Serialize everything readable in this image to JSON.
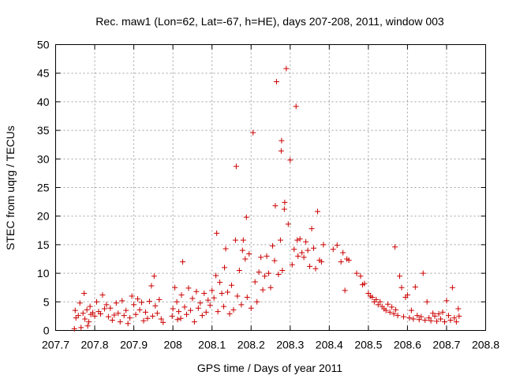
{
  "chart_data": {
    "type": "scatter",
    "title": "Rec. maw1 (Lon=62, Lat=-67, h=HE), days 207-208, 2011, window 003",
    "xlabel": "GPS time / Days of year 2011",
    "ylabel": "STEC from uqrg / TECUs",
    "xlim": [
      207.7,
      208.8
    ],
    "ylim": [
      0,
      50
    ],
    "xticks": [
      207.7,
      207.8,
      207.9,
      208.0,
      208.1,
      208.2,
      208.3,
      208.4,
      208.5,
      208.6,
      208.7,
      208.8
    ],
    "xtick_labels": [
      "207.7",
      "207.8",
      "207.9",
      "208",
      "208.1",
      "208.2",
      "208.3",
      "208.4",
      "208.5",
      "208.6",
      "208.7",
      "208.8"
    ],
    "yticks": [
      0,
      5,
      10,
      15,
      20,
      25,
      30,
      35,
      40,
      45,
      50
    ],
    "ytick_labels": [
      "0",
      "5",
      "10",
      "15",
      "20",
      "25",
      "30",
      "35",
      "40",
      "45",
      "50"
    ],
    "grid": true,
    "marker": "+",
    "color": "#cc0000",
    "series": [
      {
        "name": "STEC",
        "points": [
          [
            207.748,
            0.3
          ],
          [
            207.75,
            3.5
          ],
          [
            207.752,
            2.2
          ],
          [
            207.758,
            2.6
          ],
          [
            207.762,
            4.8
          ],
          [
            207.765,
            0.5
          ],
          [
            207.77,
            3.0
          ],
          [
            207.773,
            6.5
          ],
          [
            207.775,
            2.0
          ],
          [
            207.78,
            3.6
          ],
          [
            207.782,
            0.8
          ],
          [
            207.785,
            1.5
          ],
          [
            207.788,
            4.2
          ],
          [
            207.79,
            2.8
          ],
          [
            207.795,
            3.1
          ],
          [
            207.8,
            2.5
          ],
          [
            207.805,
            5.0
          ],
          [
            207.81,
            3.3
          ],
          [
            207.815,
            2.9
          ],
          [
            207.82,
            6.2
          ],
          [
            207.825,
            3.8
          ],
          [
            207.83,
            4.5
          ],
          [
            207.835,
            2.4
          ],
          [
            207.84,
            3.9
          ],
          [
            207.845,
            1.8
          ],
          [
            207.85,
            2.7
          ],
          [
            207.855,
            4.8
          ],
          [
            207.86,
            3.0
          ],
          [
            207.865,
            1.5
          ],
          [
            207.87,
            5.2
          ],
          [
            207.875,
            2.6
          ],
          [
            207.88,
            3.5
          ],
          [
            207.885,
            1.2
          ],
          [
            207.89,
            2.2
          ],
          [
            207.895,
            6.0
          ],
          [
            207.9,
            4.5
          ],
          [
            207.905,
            2.8
          ],
          [
            207.91,
            5.5
          ],
          [
            207.915,
            3.6
          ],
          [
            207.92,
            4.9
          ],
          [
            207.925,
            1.7
          ],
          [
            207.93,
            3.2
          ],
          [
            207.935,
            2.1
          ],
          [
            207.94,
            5.1
          ],
          [
            207.945,
            7.8
          ],
          [
            207.948,
            2.5
          ],
          [
            207.952,
            9.5
          ],
          [
            207.955,
            4.3
          ],
          [
            207.96,
            3.0
          ],
          [
            207.965,
            5.4
          ],
          [
            207.97,
            2.0
          ],
          [
            207.975,
            1.4
          ],
          [
            207.998,
            2.5
          ],
          [
            208.0,
            3.8
          ],
          [
            208.005,
            7.5
          ],
          [
            208.01,
            5.0
          ],
          [
            208.012,
            1.9
          ],
          [
            208.015,
            3.3
          ],
          [
            208.02,
            2.1
          ],
          [
            208.022,
            6.2
          ],
          [
            208.025,
            12.0
          ],
          [
            208.03,
            4.1
          ],
          [
            208.035,
            2.8
          ],
          [
            208.04,
            7.4
          ],
          [
            208.045,
            3.5
          ],
          [
            208.05,
            5.6
          ],
          [
            208.055,
            1.5
          ],
          [
            208.06,
            6.8
          ],
          [
            208.065,
            3.9
          ],
          [
            208.07,
            4.8
          ],
          [
            208.075,
            2.6
          ],
          [
            208.08,
            6.5
          ],
          [
            208.085,
            3.2
          ],
          [
            208.09,
            5.3
          ],
          [
            208.095,
            4.4
          ],
          [
            208.1,
            7.0
          ],
          [
            208.105,
            5.7
          ],
          [
            208.11,
            9.6
          ],
          [
            208.112,
            17.0
          ],
          [
            208.115,
            3.3
          ],
          [
            208.12,
            8.4
          ],
          [
            208.125,
            6.5
          ],
          [
            208.13,
            4.2
          ],
          [
            208.132,
            11.0
          ],
          [
            208.135,
            14.3
          ],
          [
            208.14,
            6.7
          ],
          [
            208.145,
            2.9
          ],
          [
            208.15,
            7.9
          ],
          [
            208.155,
            3.6
          ],
          [
            208.16,
            15.8
          ],
          [
            208.162,
            28.7
          ],
          [
            208.165,
            6.0
          ],
          [
            208.17,
            10.5
          ],
          [
            208.175,
            4.5
          ],
          [
            208.178,
            14.0
          ],
          [
            208.18,
            15.8
          ],
          [
            208.185,
            12.5
          ],
          [
            208.188,
            19.8
          ],
          [
            208.19,
            5.8
          ],
          [
            208.195,
            13.4
          ],
          [
            208.2,
            3.9
          ],
          [
            208.205,
            34.6
          ],
          [
            208.21,
            8.5
          ],
          [
            208.215,
            5.0
          ],
          [
            208.22,
            10.2
          ],
          [
            208.225,
            12.8
          ],
          [
            208.23,
            7.1
          ],
          [
            208.235,
            9.5
          ],
          [
            208.24,
            13.0
          ],
          [
            208.245,
            10.0
          ],
          [
            208.25,
            7.5
          ],
          [
            208.255,
            14.8
          ],
          [
            208.26,
            12.2
          ],
          [
            208.262,
            21.8
          ],
          [
            208.265,
            43.5
          ],
          [
            208.27,
            9.8
          ],
          [
            208.275,
            15.8
          ],
          [
            208.277,
            31.4
          ],
          [
            208.278,
            33.2
          ],
          [
            208.28,
            10.5
          ],
          [
            208.285,
            21.2
          ],
          [
            208.286,
            22.4
          ],
          [
            208.29,
            45.8
          ],
          [
            208.295,
            18.6
          ],
          [
            208.3,
            29.8
          ],
          [
            208.305,
            11.5
          ],
          [
            208.31,
            14.2
          ],
          [
            208.315,
            39.2
          ],
          [
            208.318,
            15.8
          ],
          [
            208.32,
            13.0
          ],
          [
            208.325,
            16.0
          ],
          [
            208.33,
            13.6
          ],
          [
            208.335,
            12.8
          ],
          [
            208.34,
            15.5
          ],
          [
            208.345,
            14.0
          ],
          [
            208.35,
            11.2
          ],
          [
            208.355,
            17.8
          ],
          [
            208.36,
            14.4
          ],
          [
            208.365,
            10.8
          ],
          [
            208.37,
            20.8
          ],
          [
            208.375,
            12.3
          ],
          [
            208.38,
            12.0
          ],
          [
            208.385,
            15.0
          ],
          [
            208.41,
            14.2
          ],
          [
            208.42,
            14.9
          ],
          [
            208.43,
            12.0
          ],
          [
            208.435,
            13.6
          ],
          [
            208.44,
            7.0
          ],
          [
            208.445,
            12.5
          ],
          [
            208.45,
            12.3
          ],
          [
            208.47,
            10.0
          ],
          [
            208.48,
            9.5
          ],
          [
            208.485,
            8.0
          ],
          [
            208.49,
            8.2
          ],
          [
            208.5,
            6.5
          ],
          [
            208.505,
            6.0
          ],
          [
            208.51,
            5.8
          ],
          [
            208.515,
            5.0
          ],
          [
            208.52,
            5.4
          ],
          [
            208.525,
            4.5
          ],
          [
            208.53,
            5.0
          ],
          [
            208.535,
            4.2
          ],
          [
            208.54,
            3.8
          ],
          [
            208.545,
            3.5
          ],
          [
            208.55,
            4.6
          ],
          [
            208.555,
            3.2
          ],
          [
            208.56,
            4.1
          ],
          [
            208.565,
            2.9
          ],
          [
            208.568,
            14.6
          ],
          [
            208.57,
            3.6
          ],
          [
            208.575,
            2.6
          ],
          [
            208.58,
            9.5
          ],
          [
            208.585,
            7.5
          ],
          [
            208.59,
            2.4
          ],
          [
            208.595,
            5.8
          ],
          [
            208.6,
            6.2
          ],
          [
            208.605,
            2.2
          ],
          [
            208.61,
            3.5
          ],
          [
            208.615,
            2.0
          ],
          [
            208.62,
            7.6
          ],
          [
            208.625,
            2.6
          ],
          [
            208.63,
            1.9
          ],
          [
            208.635,
            2.4
          ],
          [
            208.64,
            10.0
          ],
          [
            208.645,
            1.8
          ],
          [
            208.65,
            5.0
          ],
          [
            208.655,
            2.2
          ],
          [
            208.66,
            1.7
          ],
          [
            208.665,
            3.0
          ],
          [
            208.67,
            2.5
          ],
          [
            208.675,
            1.6
          ],
          [
            208.68,
            2.9
          ],
          [
            208.685,
            2.0
          ],
          [
            208.69,
            3.2
          ],
          [
            208.695,
            1.5
          ],
          [
            208.7,
            5.2
          ],
          [
            208.705,
            2.6
          ],
          [
            208.71,
            1.8
          ],
          [
            208.715,
            7.5
          ],
          [
            208.72,
            2.2
          ],
          [
            208.725,
            1.5
          ],
          [
            208.73,
            3.8
          ],
          [
            208.732,
            2.5
          ]
        ]
      }
    ]
  }
}
